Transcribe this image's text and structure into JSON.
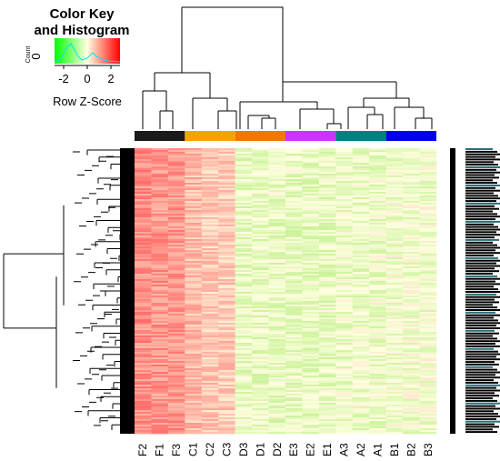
{
  "chart_data": {
    "type": "heatmap",
    "color_key": {
      "title_line1": "Color Key",
      "title_line2": "and Histogram",
      "ylabel": "Count",
      "y_tick": "0",
      "xlabel": "Row Z-Score",
      "ticks": [
        "-2",
        "0",
        "2"
      ],
      "range": [
        -3,
        3
      ],
      "colors": {
        "low": "#00ff00",
        "mid": "#ffffe0",
        "high": "#ff0000"
      },
      "histogram_color": "#00ffff"
    },
    "columns": [
      "F2",
      "F1",
      "F3",
      "C1",
      "C2",
      "C3",
      "D3",
      "D1",
      "D2",
      "E3",
      "E2",
      "E1",
      "A3",
      "A2",
      "A1",
      "B1",
      "B2",
      "B3"
    ],
    "groups": [
      {
        "members": [
          "F2",
          "F1",
          "F3"
        ],
        "color": "#1a1a1a"
      },
      {
        "members": [
          "C1",
          "C2",
          "C3"
        ],
        "color": "#f5a300"
      },
      {
        "members": [
          "D3",
          "D1",
          "D2"
        ],
        "color": "#f07800"
      },
      {
        "members": [
          "E3",
          "E2",
          "E1"
        ],
        "color": "#cc33ff"
      },
      {
        "members": [
          "A3",
          "A2",
          "A1"
        ],
        "color": "#008080"
      },
      {
        "members": [
          "B1",
          "B2",
          "B3"
        ],
        "color": "#0000ee"
      }
    ],
    "column_means": [
      2.1,
      2.0,
      2.0,
      1.3,
      1.0,
      1.0,
      -0.5,
      -0.5,
      -0.5,
      -0.5,
      -0.5,
      -0.5,
      -0.4,
      -0.4,
      -0.4,
      -0.3,
      -0.3,
      -0.3
    ]
  }
}
